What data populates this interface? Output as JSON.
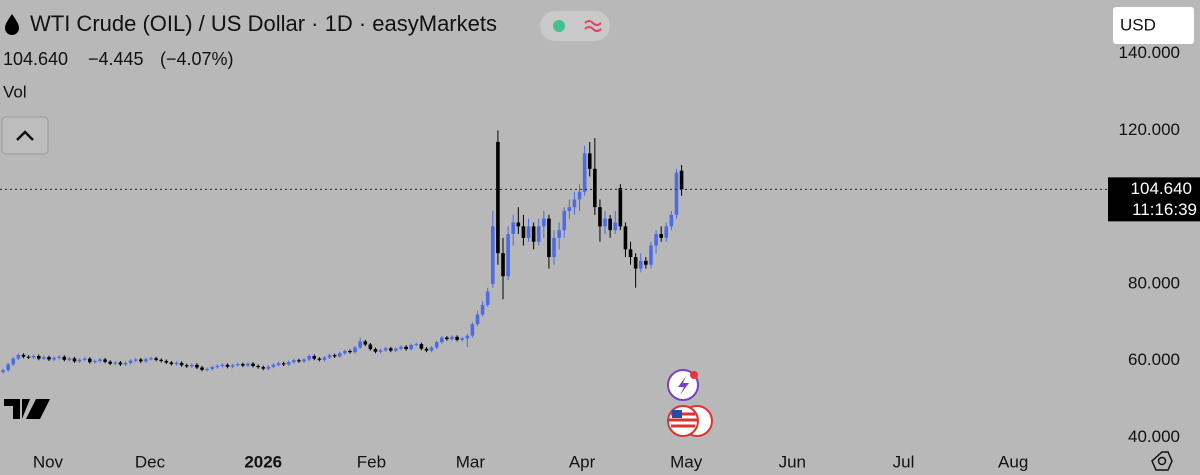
{
  "chart_data": {
    "type": "candlestick",
    "title": "WTI Crude (OIL) / US Dollar · 1D · easyMarkets",
    "change": "−4.445",
    "change_pct": "(−4.07%)",
    "volume_label": "Vol",
    "currency": "USD",
    "price_line": {
      "value": 104.64,
      "label": "104.640"
    },
    "countdown": "11:16:39",
    "up_color": "#4b6ce6",
    "down_color": "#000000",
    "categories": [
      null,
      null,
      null,
      null,
      null,
      null,
      null,
      null,
      null,
      null,
      null,
      null,
      null,
      null,
      null,
      null,
      null,
      null,
      null,
      null,
      null,
      null,
      null,
      null,
      null,
      null,
      null,
      null,
      null,
      null,
      null,
      null,
      null,
      null,
      null,
      null,
      null,
      null,
      null,
      null,
      null,
      null,
      null,
      null,
      null,
      null,
      null,
      null,
      null,
      null,
      null,
      null,
      null,
      null,
      null,
      null,
      null,
      null,
      null,
      null,
      null,
      null,
      null,
      null,
      null,
      null,
      null,
      null,
      null,
      null,
      null,
      null,
      null,
      null,
      null,
      null,
      null,
      null,
      null,
      null,
      null,
      null,
      null,
      null,
      null,
      null,
      null,
      null,
      null,
      null,
      null,
      null,
      null,
      null,
      null,
      null,
      null,
      null,
      null,
      null,
      null,
      null,
      null,
      null,
      null,
      null,
      null,
      null,
      null,
      null,
      null,
      null,
      null,
      null,
      null,
      null,
      null,
      null,
      null,
      null,
      null,
      null,
      null,
      null,
      null,
      null,
      null,
      null,
      null,
      null,
      null,
      null,
      null,
      null
    ],
    "open": [
      57,
      57.5,
      59,
      60.5,
      61.5,
      61,
      60.8,
      61.2,
      60.5,
      60.9,
      60.3,
      60.7,
      61,
      60.2,
      60.6,
      59.8,
      60.2,
      60.5,
      59.6,
      59.9,
      60.3,
      59.7,
      59.2,
      59.5,
      59,
      59.4,
      60,
      60.3,
      59.8,
      60.4,
      60.6,
      60.2,
      59.9,
      59.5,
      59.1,
      59.4,
      58.8,
      58.5,
      58.9,
      58.2,
      57.6,
      57.8,
      58.3,
      58.6,
      58.9,
      58.4,
      58.8,
      59.1,
      58.7,
      59.2,
      58.6,
      58.3,
      57.9,
      58.4,
      58.9,
      59.3,
      59,
      59.6,
      60.1,
      59.8,
      60.3,
      61.2,
      60.5,
      60.2,
      60.8,
      61.4,
      61.1,
      61.9,
      62.5,
      62.2,
      63.4,
      65,
      64.2,
      63,
      62.3,
      62.7,
      63.2,
      62.6,
      63.1,
      63.6,
      63,
      64.1,
      64.3,
      63.1,
      62.6,
      63.4,
      64.8,
      66,
      65.6,
      66.2,
      65.4,
      65.8,
      66.5,
      69.5,
      72,
      74.5,
      80,
      117,
      88,
      82,
      93,
      96,
      95,
      92,
      95,
      91,
      95,
      97,
      87,
      92,
      94,
      99,
      100,
      102,
      104,
      114,
      110,
      100,
      95,
      97,
      94,
      105,
      95,
      89,
      87,
      84,
      86,
      85,
      90,
      93,
      92,
      95,
      98,
      109.5
    ],
    "high": [
      57.9,
      59.4,
      60.9,
      61.9,
      61.9,
      61.4,
      61.6,
      61.6,
      61.3,
      61.3,
      61.1,
      61.4,
      61.4,
      61,
      61,
      60.6,
      60.9,
      60.9,
      60.3,
      60.7,
      60.7,
      60.1,
      59.9,
      59.9,
      59.8,
      60.4,
      60.7,
      60.7,
      60.8,
      61,
      61,
      60.6,
      60.3,
      59.9,
      59.8,
      59.8,
      59.2,
      59.3,
      59.3,
      58.6,
      58.2,
      58.7,
      59,
      59.3,
      59.3,
      59.2,
      59.5,
      59.5,
      59.6,
      59.6,
      59,
      58.7,
      58.8,
      59.3,
      59.7,
      59.7,
      60,
      60.5,
      60.5,
      60.7,
      61.6,
      61.6,
      60.9,
      61.2,
      61.8,
      61.8,
      62.3,
      62.9,
      62.9,
      63.8,
      66,
      65.4,
      64.6,
      63.4,
      63.1,
      63.6,
      63.6,
      63.5,
      64,
      64,
      64.5,
      64.7,
      64.7,
      63.5,
      63.8,
      65.2,
      66.4,
      66.4,
      66.6,
      66.6,
      66.2,
      67,
      70,
      73,
      75.5,
      79,
      99,
      120,
      92,
      95,
      98,
      100,
      98,
      97,
      96,
      97,
      99,
      98,
      94,
      96,
      100,
      102,
      104,
      106,
      116,
      117,
      118,
      102,
      99,
      98,
      99,
      106,
      96,
      91,
      88,
      88,
      87,
      91,
      94,
      95,
      96,
      99,
      110,
      111
    ],
    "low": [
      56.6,
      57.1,
      58.6,
      60.1,
      60.6,
      60.4,
      60.4,
      60.1,
      60.1,
      59.9,
      59.9,
      60.3,
      59.8,
      59.8,
      59.4,
      59.4,
      59.8,
      59.2,
      59.2,
      59.5,
      59.3,
      58.8,
      58.8,
      58.6,
      58.6,
      59,
      59.6,
      59.4,
      59.4,
      60,
      59.8,
      59.5,
      59.1,
      58.7,
      58.7,
      58.4,
      58.1,
      58.1,
      57.8,
      57.2,
      57.2,
      57.4,
      57.9,
      58.2,
      58,
      58,
      58.4,
      58.3,
      58.3,
      58.2,
      57.9,
      57.5,
      57.5,
      58,
      58.5,
      58.6,
      58.6,
      59.2,
      59.4,
      59.4,
      59.9,
      60.1,
      59.8,
      59.8,
      60.4,
      60.7,
      60.7,
      61.5,
      61.8,
      61.8,
      63,
      63.8,
      62.6,
      61.9,
      61.9,
      62.3,
      62.2,
      62.2,
      62.7,
      62.6,
      62.6,
      63.7,
      62.7,
      62.2,
      62.2,
      63,
      64.4,
      65.2,
      65.2,
      65,
      65,
      63.5,
      66,
      69,
      71.5,
      74,
      79,
      85,
      76,
      81,
      90,
      93,
      90,
      91,
      89,
      90,
      92,
      84,
      85,
      89,
      92,
      97,
      98,
      99,
      103,
      108,
      98,
      91,
      93,
      92,
      93,
      94,
      87,
      85,
      79,
      83,
      84,
      84,
      88,
      91,
      91,
      94,
      97,
      103
    ],
    "close": [
      57.5,
      59,
      60.5,
      61.5,
      61,
      60.8,
      61.2,
      60.5,
      60.9,
      60.3,
      60.7,
      61,
      60.2,
      60.6,
      59.8,
      60.2,
      60.5,
      59.6,
      59.9,
      60.3,
      59.7,
      59.2,
      59.5,
      59,
      59.4,
      60,
      60.3,
      59.8,
      60.4,
      60.6,
      60.2,
      59.9,
      59.5,
      59.1,
      59.4,
      58.8,
      58.5,
      58.9,
      58.2,
      57.6,
      57.8,
      58.3,
      58.6,
      58.9,
      58.4,
      58.8,
      59.1,
      58.7,
      59.2,
      58.6,
      58.3,
      57.9,
      58.4,
      58.9,
      59.3,
      59,
      59.6,
      60.1,
      59.8,
      60.3,
      61.2,
      60.5,
      60.2,
      60.8,
      61.4,
      61.1,
      61.9,
      62.5,
      62.2,
      63.4,
      65,
      64.2,
      63,
      62.3,
      62.7,
      63.2,
      62.6,
      63.1,
      63.6,
      63,
      64.1,
      64.3,
      63.1,
      62.6,
      63.4,
      64.8,
      66,
      65.6,
      66.2,
      65.4,
      65.8,
      66.5,
      69.5,
      72,
      74.5,
      78,
      95,
      88,
      82,
      93,
      96,
      95,
      92,
      95,
      91,
      95,
      97,
      87,
      92,
      94,
      99,
      100,
      102,
      104,
      114,
      110,
      100,
      95,
      97,
      94,
      96,
      95,
      89,
      87,
      84,
      86,
      85,
      90,
      93,
      92,
      95,
      98,
      109,
      104.64
    ],
    "ylim": [
      38,
      154
    ],
    "yticks": [
      {
        "value": 40,
        "label": "40.000"
      },
      {
        "value": 60,
        "label": "60.000"
      },
      {
        "value": 80,
        "label": "80.000"
      },
      {
        "value": 120,
        "label": "120.000"
      },
      {
        "value": 140,
        "label": "140.000"
      }
    ],
    "xlim": [
      -0.6,
      216
    ],
    "xticks": [
      {
        "value": 8.8,
        "label": "Nov"
      },
      {
        "value": 28.8,
        "label": "Dec"
      },
      {
        "value": 51,
        "label": "2026"
      },
      {
        "value": 72.2,
        "label": "Feb"
      },
      {
        "value": 91.6,
        "label": "Mar"
      },
      {
        "value": 113.5,
        "label": "Apr"
      },
      {
        "value": 133.9,
        "label": "May"
      },
      {
        "value": 154.7,
        "label": "Jun"
      },
      {
        "value": 176.5,
        "label": "Jul"
      },
      {
        "value": 198,
        "label": "Aug"
      }
    ]
  }
}
